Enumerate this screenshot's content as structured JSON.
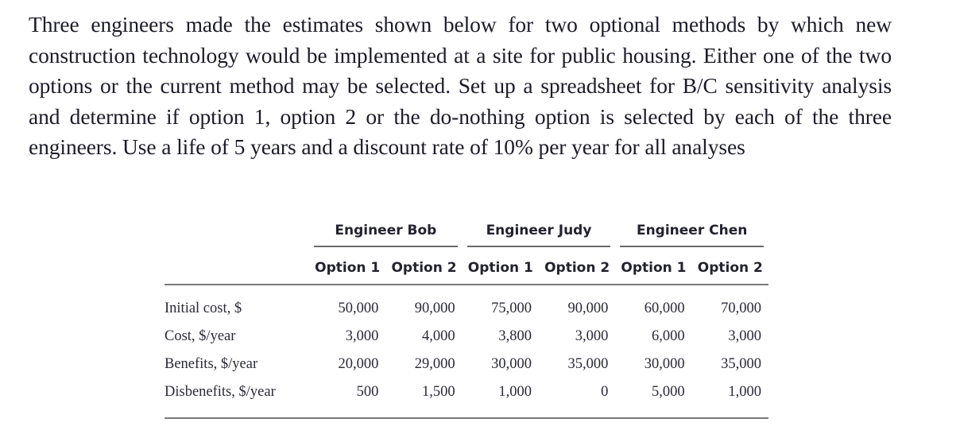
{
  "problem": {
    "text": "Three engineers made the estimates shown below for two optional methods by which new construction technology would be implemented at a site for public housing. Either one of the two options or the current method may be selected. Set up a spreadsheet for B/C sensitivity analysis and determine if option 1, option 2 or the do-nothing option is selected by each of the three engineers. Use a life of 5 years and a discount rate of 10% per year for all analyses"
  },
  "table": {
    "engineers": [
      {
        "name": "Engineer Bob"
      },
      {
        "name": "Engineer Judy"
      },
      {
        "name": "Engineer Chen"
      }
    ],
    "options": [
      "Option 1",
      "Option 2",
      "Option 1",
      "Option 2",
      "Option 1",
      "Option 2"
    ],
    "rows": [
      {
        "label": "Initial cost, $",
        "values": [
          "50,000",
          "90,000",
          "75,000",
          "90,000",
          "60,000",
          "70,000"
        ]
      },
      {
        "label": "Cost, $/year",
        "values": [
          "3,000",
          "4,000",
          "3,800",
          "3,000",
          "6,000",
          "3,000"
        ]
      },
      {
        "label": "Benefits, $/year",
        "values": [
          "20,000",
          "29,000",
          "30,000",
          "35,000",
          "30,000",
          "35,000"
        ]
      },
      {
        "label": "Disbenefits, $/year",
        "values": [
          "500",
          "1,500",
          "1,000",
          "0",
          "5,000",
          "1,000"
        ]
      }
    ]
  }
}
